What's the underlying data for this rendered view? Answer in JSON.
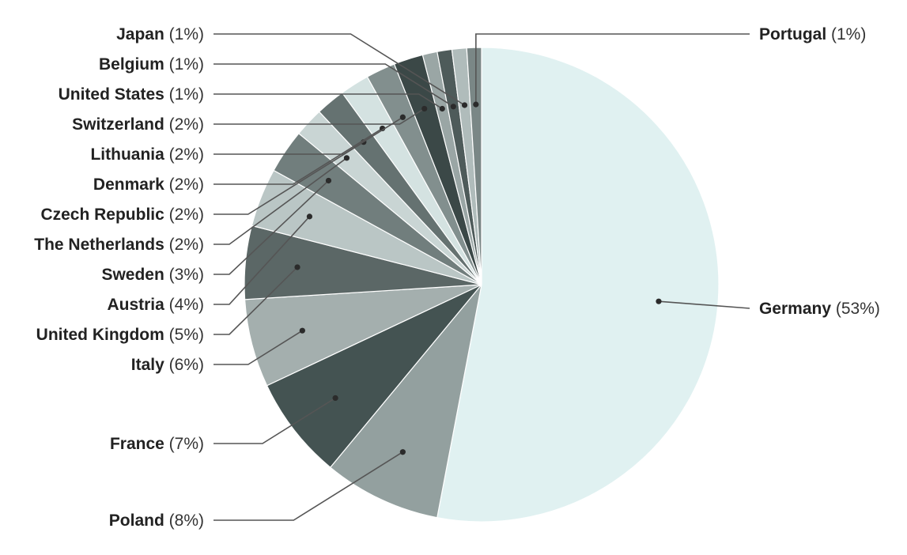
{
  "chart_data": {
    "type": "pie",
    "slices": [
      {
        "label": "Germany",
        "value": 53,
        "pct_label": "(53%)",
        "color": "#e0f1f1"
      },
      {
        "label": "Poland",
        "value": 8,
        "pct_label": "(8%)",
        "color": "#93a09f"
      },
      {
        "label": "France",
        "value": 7,
        "pct_label": "(7%)",
        "color": "#445352"
      },
      {
        "label": "Italy",
        "value": 6,
        "pct_label": "(6%)",
        "color": "#a4afae"
      },
      {
        "label": "United Kingdom",
        "value": 5,
        "pct_label": "(5%)",
        "color": "#5b6766"
      },
      {
        "label": "Austria",
        "value": 4,
        "pct_label": "(4%)",
        "color": "#bac6c5"
      },
      {
        "label": "Sweden",
        "value": 3,
        "pct_label": "(3%)",
        "color": "#717e7d"
      },
      {
        "label": "The Netherlands",
        "value": 2,
        "pct_label": "(2%)",
        "color": "#c9d5d4"
      },
      {
        "label": "Czech Republic",
        "value": 2,
        "pct_label": "(2%)",
        "color": "#657271"
      },
      {
        "label": "Denmark",
        "value": 2,
        "pct_label": "(2%)",
        "color": "#d4e2e1"
      },
      {
        "label": "Lithuania",
        "value": 2,
        "pct_label": "(2%)",
        "color": "#828f8e"
      },
      {
        "label": "Switzerland",
        "value": 2,
        "pct_label": "(2%)",
        "color": "#3b4847"
      },
      {
        "label": "United States",
        "value": 1,
        "pct_label": "(1%)",
        "color": "#9aa6a5"
      },
      {
        "label": "Belgium",
        "value": 1,
        "pct_label": "(1%)",
        "color": "#4e5b5a"
      },
      {
        "label": "Japan",
        "value": 1,
        "pct_label": "(1%)",
        "color": "#b0bcbb"
      },
      {
        "label": "Portugal",
        "value": 1,
        "pct_label": "(1%)",
        "color": "#7a8786"
      }
    ]
  }
}
